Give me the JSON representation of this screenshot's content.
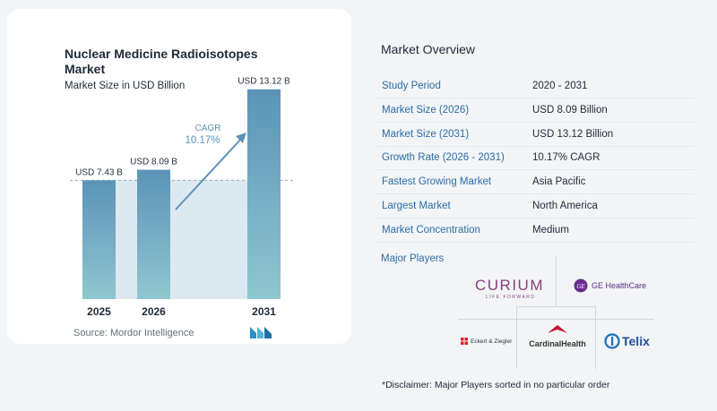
{
  "chart": {
    "title": "Nuclear Medicine Radioisotopes Market",
    "subtitle": "Market Size in USD Billion",
    "source": "Source:  Mordor Intelligence",
    "cagr_label": "CAGR",
    "cagr_value": "10.17%"
  },
  "chart_data": {
    "type": "bar",
    "title": "Nuclear Medicine Radioisotopes Market",
    "subtitle": "Market Size in USD Billion",
    "categories": [
      "2025",
      "2026",
      "2031"
    ],
    "values": [
      7.43,
      8.09,
      13.12
    ],
    "data_labels": [
      "USD 7.43 B",
      "USD 8.09 B",
      "USD 13.12 B"
    ],
    "ylim": [
      0,
      14
    ],
    "grid": false,
    "colors": {
      "bar_top": "#5b93b8",
      "bar_bottom": "#8fc7cf",
      "shade": "#dce9f0",
      "arrow": "#5b93b8"
    }
  },
  "overview": {
    "title": "Market Overview",
    "rows": [
      {
        "label": "Study Period",
        "value": "2020 - 2031"
      },
      {
        "label": "Market Size (2026)",
        "value": "USD 8.09 Billion"
      },
      {
        "label": "Market Size (2031)",
        "value": "USD 13.12 Billion"
      },
      {
        "label": "Growth Rate (2026 - 2031)",
        "value": "10.17% CAGR"
      },
      {
        "label": "Fastest Growing Market",
        "value": "Asia Pacific"
      },
      {
        "label": "Largest Market",
        "value": "North America"
      },
      {
        "label": "Market Concentration",
        "value": "Medium"
      }
    ],
    "players_label": "Major Players",
    "players": [
      {
        "name": "CURIUM",
        "tagline": "LIFE FORWARD"
      },
      {
        "name": "GE HealthCare"
      },
      {
        "name": "Eckert & Ziegler"
      },
      {
        "name": "CardinalHealth"
      },
      {
        "name": "Telix"
      }
    ],
    "disclaimer": "*Disclaimer: Major Players sorted in no particular order"
  }
}
